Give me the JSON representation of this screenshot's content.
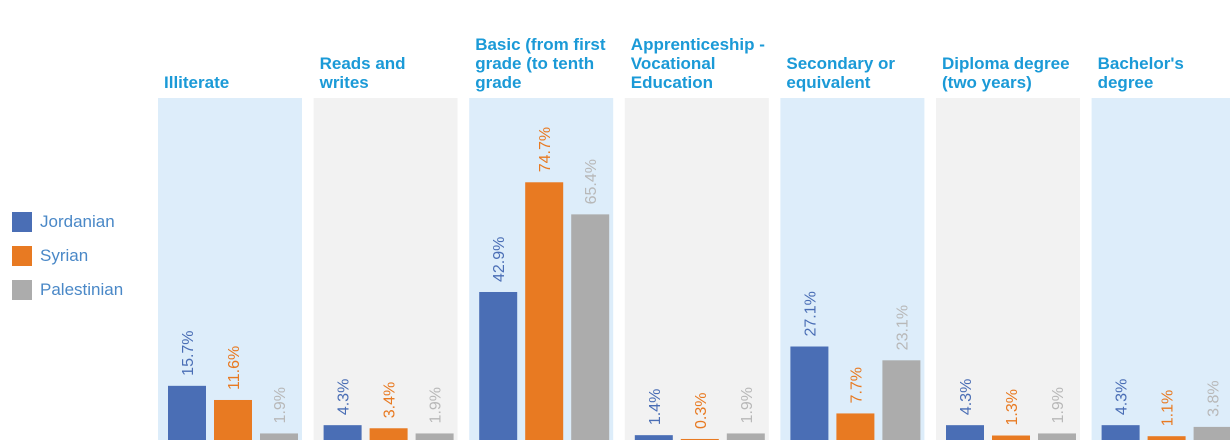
{
  "chart_data": {
    "type": "bar",
    "categories": [
      "Illiterate",
      "Reads and writes",
      "Basic (from first grade (to tenth grade",
      "Apprenticeship -Vocational Education",
      "Secondary or equivalent",
      "Diploma degree (two years)",
      "Bachelor's degree"
    ],
    "series": [
      {
        "name": "Jordanian",
        "color": "#4a6eb5",
        "values": [
          15.7,
          4.3,
          42.9,
          1.4,
          27.1,
          4.3,
          4.3
        ],
        "value_labels": [
          "15.7%",
          "4.3%",
          "42.9%",
          "1.4%",
          "27.1%",
          "4.3%",
          "4.3%"
        ]
      },
      {
        "name": "Syrian",
        "color": "#e87a22",
        "values": [
          11.6,
          3.4,
          74.7,
          0.3,
          7.7,
          1.3,
          1.1
        ],
        "value_labels": [
          "11.6%",
          "3.4%",
          "74.7%",
          "0.3%",
          "7.7%",
          "1.3%",
          "1.1%"
        ]
      },
      {
        "name": "Palestinian",
        "color": "#acacac",
        "values": [
          1.9,
          1.9,
          65.4,
          1.9,
          23.1,
          1.9,
          3.8
        ],
        "value_labels": [
          "1.9%",
          "1.9%",
          "65.4%",
          "1.9%",
          "23.1%",
          "1.9%",
          "3.8%"
        ]
      }
    ]
  }
}
